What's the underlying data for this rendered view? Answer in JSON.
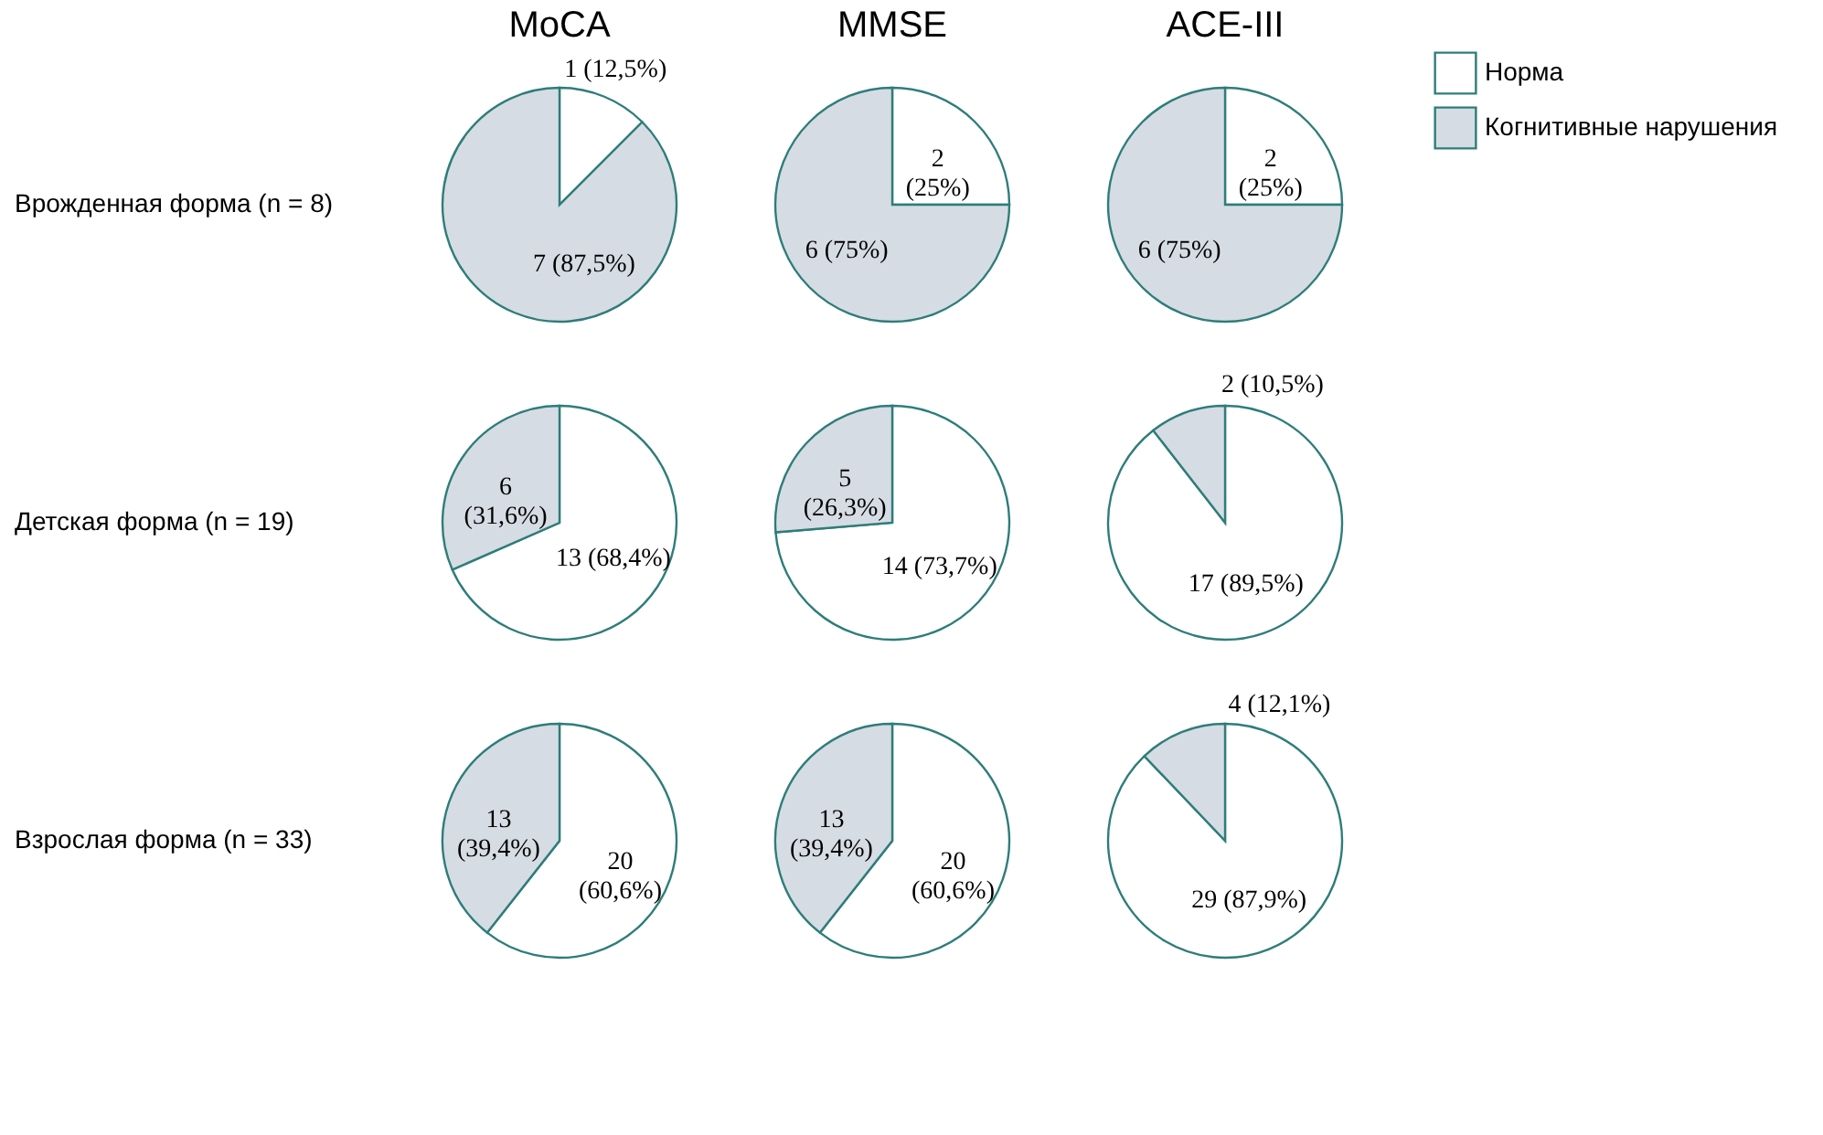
{
  "chart_data": [
    {
      "type": "pie",
      "legend": "right",
      "title": "MoCA",
      "ylabel": "Врожденная форма (n = 8)",
      "categories": [
        "Норма",
        "Когнитивные нарушения"
      ],
      "values": [
        1,
        7
      ],
      "colors": [
        "#ffffff",
        "#d6dce4"
      ],
      "value_labels": [
        "1 (12,5%)",
        "7 (87,5%)"
      ]
    },
    {
      "type": "pie",
      "title": "MMSE",
      "categories": [
        null,
        null
      ],
      "values": [
        2,
        6
      ],
      "colors": [
        "#ffffff",
        "#d6dce4"
      ],
      "value_labels": [
        "2 (25%)",
        "6 (75%)"
      ]
    },
    {
      "type": "pie",
      "title": "ACE-III",
      "categories": [
        null,
        null
      ],
      "values": [
        2,
        6
      ],
      "colors": [
        "#ffffff",
        "#d6dce4"
      ],
      "value_labels": [
        "2 (25%)",
        "6 (75%)"
      ]
    },
    {
      "type": "pie",
      "ylabel": "Детская форма (n = 19)",
      "categories": [
        null,
        null
      ],
      "values": [
        13,
        6
      ],
      "colors": [
        "#ffffff",
        "#d6dce4"
      ],
      "value_labels": [
        "13 (68,4%)",
        "6 (31,6%)"
      ]
    },
    {
      "type": "pie",
      "categories": [
        null,
        null
      ],
      "values": [
        14,
        5
      ],
      "colors": [
        "#ffffff",
        "#d6dce4"
      ],
      "value_labels": [
        "14 (73,7%)",
        "5 (26,3%)"
      ]
    },
    {
      "type": "pie",
      "categories": [
        null,
        null
      ],
      "values": [
        17,
        2
      ],
      "colors": [
        "#ffffff",
        "#d6dce4"
      ],
      "value_labels": [
        "17 (89,5%)",
        "2 (10,5%)"
      ]
    },
    {
      "type": "pie",
      "ylabel": "Взрослая форма (n = 33)",
      "categories": [
        null,
        null
      ],
      "values": [
        20,
        13
      ],
      "colors": [
        "#ffffff",
        "#d6dce4"
      ],
      "value_labels": [
        "20 (60,6%)",
        "13 (39,4%)"
      ]
    },
    {
      "type": "pie",
      "categories": [
        null,
        null
      ],
      "values": [
        20,
        13
      ],
      "colors": [
        "#ffffff",
        "#d6dce4"
      ],
      "value_labels": [
        "20 (60,6%)",
        "13 (39,4%)"
      ]
    },
    {
      "type": "pie",
      "categories": [
        null,
        null
      ],
      "values": [
        29,
        4
      ],
      "colors": [
        "#ffffff",
        "#d6dce4"
      ],
      "value_labels": [
        "29 (87,9%)",
        "4 (12,1%)"
      ]
    }
  ]
}
